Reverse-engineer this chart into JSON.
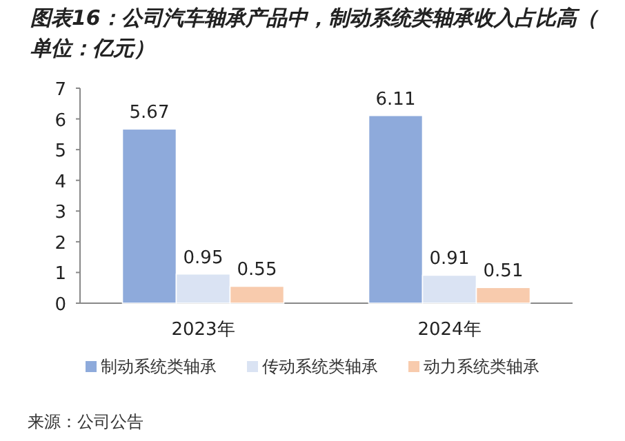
{
  "chart_data": {
    "type": "bar",
    "title": "图表16：公司汽车轴承产品中，制动系统类轴承收入占比高（单位：亿元）",
    "categories": [
      "2023年",
      "2024年"
    ],
    "series": [
      {
        "name": "制动系统类轴承",
        "color": "#8eaadb",
        "values": [
          5.67,
          6.11
        ]
      },
      {
        "name": "传动系统类轴承",
        "color": "#dae3f3",
        "values": [
          0.95,
          0.91
        ]
      },
      {
        "name": "动力系统类轴承",
        "color": "#f8cbad",
        "values": [
          0.55,
          0.51
        ]
      }
    ],
    "ylim": [
      0,
      7
    ],
    "yticks": [
      0,
      1,
      2,
      3,
      4,
      5,
      6,
      7
    ],
    "data_labels": true,
    "grid": false,
    "legend": "bottom",
    "annotations": [
      "来源：公司公告"
    ]
  }
}
